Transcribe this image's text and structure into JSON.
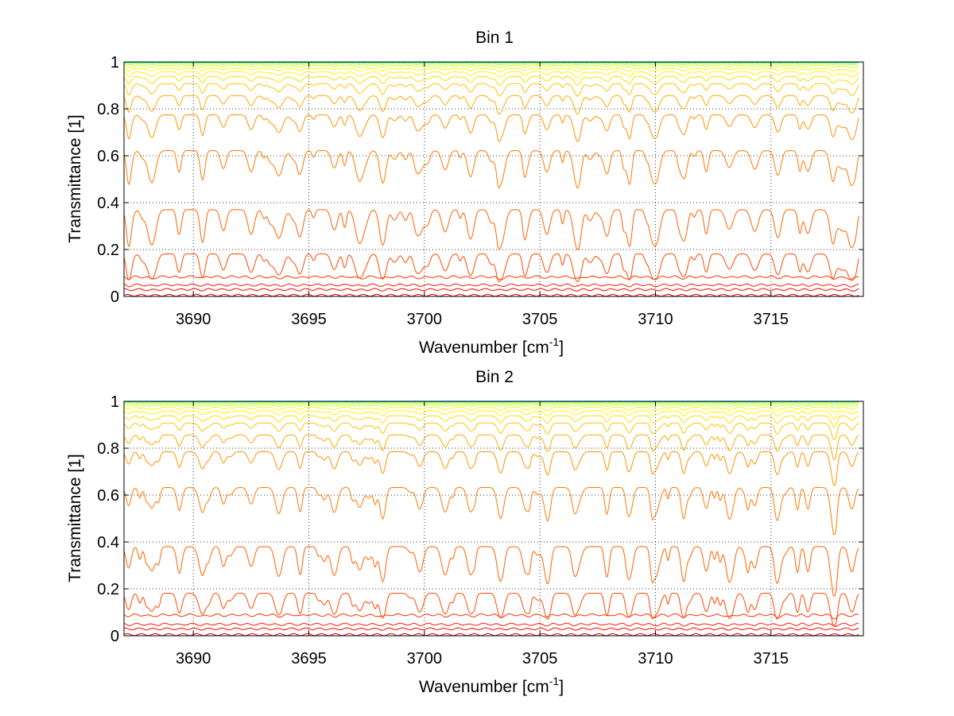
{
  "chart_data": [
    {
      "type": "line",
      "title": "Bin 1",
      "xlabel": "Wavenumber [cm",
      "xlabel_sup": "-1",
      "xlabel_end": "]",
      "ylabel": "Transmittance [1]",
      "xlim": [
        3687,
        3719
      ],
      "ylim": [
        0,
        1
      ],
      "x_ticks": [
        3690,
        3695,
        3700,
        3705,
        3710,
        3715
      ],
      "x_tick_labels": [
        "3690",
        "3695",
        "3700",
        "3705",
        "3710",
        "3715"
      ],
      "y_ticks": [
        0,
        0.2,
        0.4,
        0.6,
        0.8,
        1
      ],
      "y_tick_labels": [
        "0",
        "0.2",
        "0.4",
        "0.6",
        "0.8",
        "1"
      ],
      "grid": true,
      "x_range": [
        3687,
        3718.8
      ],
      "line_minima": [
        3687.2,
        3688.2,
        3689.4,
        3690.4,
        3691.3,
        3692.5,
        3693.7,
        3694.6,
        3696.1,
        3697.2,
        3698.2,
        3699.8,
        3700.9,
        3702.0,
        3703.3,
        3704.4,
        3705.3,
        3706.6,
        3707.9,
        3708.9,
        3710.0,
        3711.2,
        3712.2,
        3713.2,
        3714.3,
        3715.3,
        3716.6,
        3717.7,
        3718.5
      ],
      "series_count": 30,
      "colormap": "jet",
      "representative_levels": [
        0.005,
        0.03,
        0.05,
        0.085,
        0.19,
        0.38,
        0.63,
        0.78,
        0.86,
        0.91,
        0.94,
        0.96,
        0.975,
        0.985,
        0.992,
        0.996,
        0.998,
        0.999
      ]
    },
    {
      "type": "line",
      "title": "Bin 2",
      "xlabel": "Wavenumber [cm",
      "xlabel_sup": "-1",
      "xlabel_end": "]",
      "ylabel": "Transmittance [1]",
      "xlim": [
        3687,
        3719
      ],
      "ylim": [
        0,
        1
      ],
      "x_ticks": [
        3690,
        3695,
        3700,
        3705,
        3710,
        3715
      ],
      "x_tick_labels": [
        "3690",
        "3695",
        "3700",
        "3705",
        "3710",
        "3715"
      ],
      "y_ticks": [
        0,
        0.2,
        0.4,
        0.6,
        0.8,
        1
      ],
      "y_tick_labels": [
        "0",
        "0.2",
        "0.4",
        "0.6",
        "0.8",
        "1"
      ],
      "grid": true,
      "x_range": [
        3687,
        3718.8
      ],
      "line_minima": [
        3687.2,
        3688.2,
        3689.4,
        3690.4,
        3691.3,
        3692.5,
        3693.7,
        3694.6,
        3696.1,
        3697.2,
        3698.2,
        3699.8,
        3700.9,
        3702.0,
        3703.3,
        3704.4,
        3705.3,
        3706.6,
        3707.9,
        3708.9,
        3710.0,
        3711.2,
        3712.2,
        3713.2,
        3714.3,
        3715.3,
        3716.6,
        3717.7,
        3718.5
      ],
      "series_count": 30,
      "colormap": "jet",
      "representative_levels": [
        0.005,
        0.03,
        0.05,
        0.09,
        0.19,
        0.39,
        0.64,
        0.79,
        0.86,
        0.91,
        0.94,
        0.96,
        0.975,
        0.985,
        0.992,
        0.996,
        0.998,
        0.999
      ]
    }
  ]
}
